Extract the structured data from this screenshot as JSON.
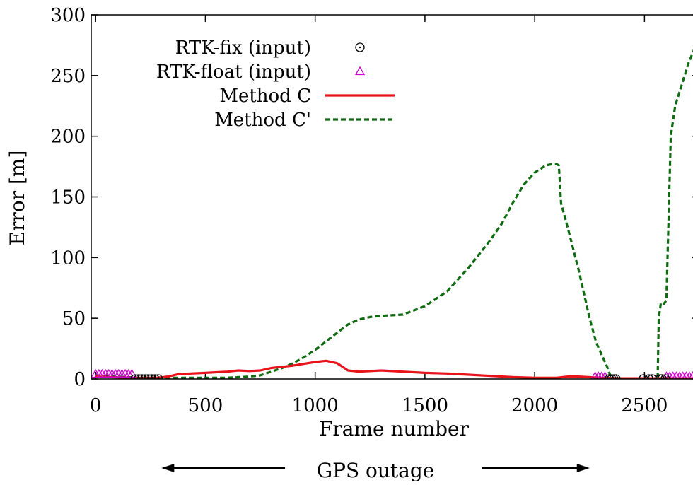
{
  "chart_data": {
    "type": "line",
    "title": "",
    "xlabel": "Frame number",
    "ylabel": "Error [m]",
    "xlim": [
      -20,
      2750
    ],
    "ylim": [
      0,
      300
    ],
    "x_ticks": [
      0,
      500,
      1000,
      1500,
      2000,
      2500
    ],
    "y_ticks": [
      0,
      50,
      100,
      150,
      200,
      250,
      300
    ],
    "grid": false,
    "legend_position": "top-left",
    "series": [
      {
        "name": "RTK-fix (input)",
        "kind": "points",
        "marker": "circle-dot",
        "color": "#000000",
        "x": [
          180,
          195,
          210,
          225,
          240,
          255,
          270,
          285,
          2340,
          2350,
          2360,
          2370,
          2495,
          2520,
          2535,
          2570,
          2580,
          2595
        ],
        "y": [
          0,
          0,
          0,
          0,
          0,
          0,
          0,
          0,
          0,
          0,
          0,
          0,
          0,
          0,
          0,
          0,
          0,
          0
        ]
      },
      {
        "name": "RTK-float (input)",
        "kind": "points",
        "marker": "triangle",
        "color": "#cc00cc",
        "x": [
          0,
          15,
          30,
          45,
          60,
          75,
          90,
          105,
          120,
          135,
          150,
          165,
          2275,
          2290,
          2305,
          2320,
          2600,
          2615,
          2630,
          2645,
          2660,
          2675,
          2690,
          2705,
          2720,
          2735
        ],
        "y": [
          4,
          4,
          4,
          4,
          4,
          4,
          4,
          4,
          4,
          4,
          4,
          4,
          2,
          2,
          2,
          2,
          2,
          2,
          2,
          2,
          2,
          2,
          2,
          2,
          2,
          2
        ]
      },
      {
        "name": "Method C",
        "kind": "line",
        "color": "#e8131b",
        "dash": "",
        "x": [
          0,
          150,
          280,
          330,
          380,
          500,
          600,
          650,
          700,
          750,
          800,
          850,
          900,
          1000,
          1050,
          1100,
          1150,
          1200,
          1300,
          1400,
          1500,
          1600,
          1700,
          1800,
          1900,
          2000,
          2100,
          2150,
          2200,
          2300,
          2400,
          2500,
          2600,
          2750
        ],
        "y": [
          2,
          1,
          1,
          2,
          4,
          5,
          6,
          7,
          6.5,
          7,
          9,
          10,
          11,
          14,
          15,
          13,
          7,
          6,
          7,
          6,
          5,
          4.5,
          3.5,
          2.5,
          1.5,
          1,
          1,
          2,
          2,
          1,
          0.5,
          0.5,
          0.5,
          0.5
        ]
      },
      {
        "name": "Method C'",
        "kind": "line",
        "color": "#0f6b10",
        "dash": "7,4",
        "x": [
          0,
          100,
          200,
          300,
          400,
          500,
          600,
          700,
          750,
          800,
          850,
          900,
          950,
          1000,
          1050,
          1100,
          1150,
          1200,
          1250,
          1300,
          1350,
          1400,
          1500,
          1600,
          1700,
          1800,
          1850,
          1900,
          1950,
          2000,
          2050,
          2080,
          2100,
          2110,
          2120,
          2150,
          2200,
          2250,
          2280,
          2300,
          2330,
          2350,
          2400,
          2500,
          2560,
          2565,
          2575,
          2590,
          2600,
          2620,
          2640,
          2700,
          2750
        ],
        "y": [
          3,
          2,
          1,
          1,
          1,
          1,
          1,
          2,
          3,
          6,
          9,
          13,
          18,
          24,
          31,
          38,
          45,
          49,
          51,
          52,
          52.5,
          53,
          60,
          72,
          92,
          115,
          128,
          145,
          160,
          170,
          176,
          177,
          177,
          176,
          145,
          125,
          90,
          50,
          30,
          22,
          10,
          0,
          0,
          0,
          0,
          50,
          63,
          62,
          65,
          200,
          225,
          260,
          282
        ]
      }
    ],
    "annotation": {
      "text": "GPS outage",
      "arrow_from_x": 300,
      "arrow_to_x": 2250
    }
  }
}
